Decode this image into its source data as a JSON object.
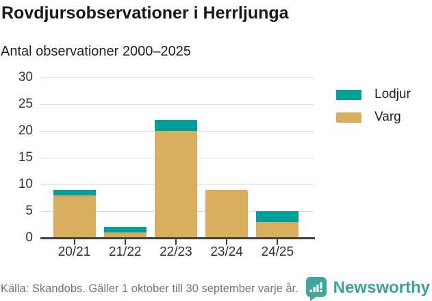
{
  "header": {
    "title": "Rovdjursobservationer i Herrljunga",
    "subtitle": "Antal observationer 2000–2025"
  },
  "chart_data": {
    "type": "bar",
    "stacked": true,
    "title": "Rovdjursobservationer i Herrljunga",
    "subtitle": "Antal observationer 2000–2025",
    "categories": [
      "20/21",
      "21/22",
      "22/23",
      "23/24",
      "24/25"
    ],
    "series": [
      {
        "name": "Varg",
        "color": "#d9ae5f",
        "values": [
          8,
          1,
          20,
          9,
          3
        ]
      },
      {
        "name": "Lodjur",
        "color": "#00a09a",
        "values": [
          1,
          1,
          2,
          0,
          2
        ]
      }
    ],
    "totals": [
      9,
      2,
      22,
      9,
      5
    ],
    "xlabel": "",
    "ylabel": "",
    "ylim": [
      0,
      30
    ],
    "yticks": [
      0,
      5,
      10,
      15,
      20,
      25,
      30
    ],
    "grid": "horizontal",
    "legend_position": "right",
    "legend_order": [
      "Lodjur",
      "Varg"
    ]
  },
  "footer": {
    "source": "Källa: Skandobs. Gäller 1 oktober till 30 september varje år.",
    "brand": "Newsworthy"
  },
  "colors": {
    "lodjur": "#00a09a",
    "varg": "#d9ae5f",
    "brand_teal": "#41a69e",
    "grid": "#dcdcdc",
    "axis": "#404040"
  }
}
